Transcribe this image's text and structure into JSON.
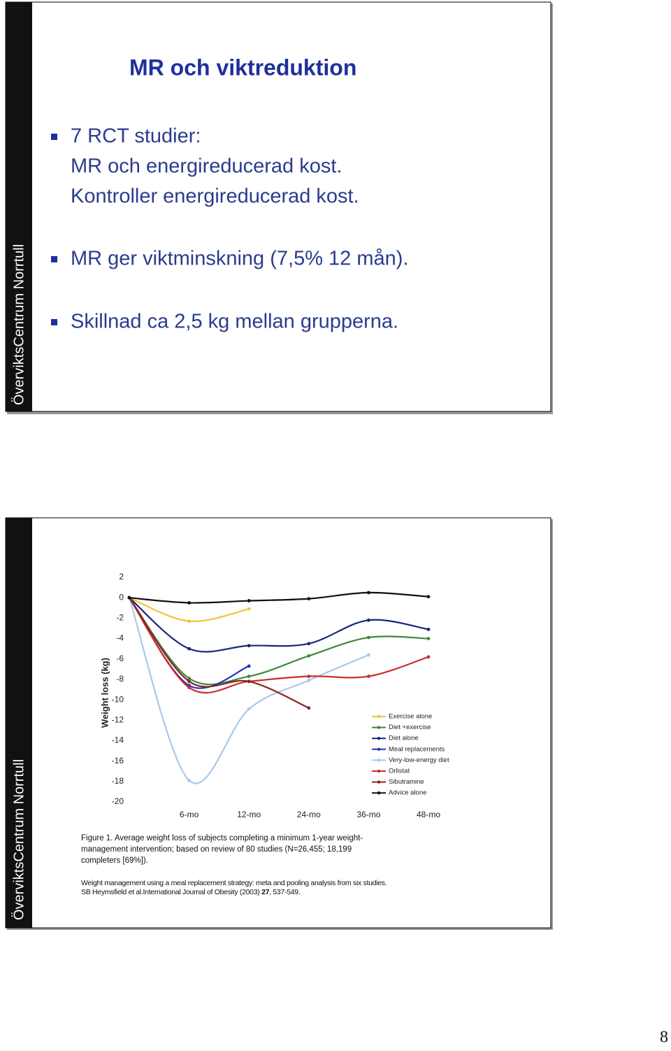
{
  "slides": [
    {
      "side_label": "ÖverviktsCentrum Norrtull",
      "title": "MR och viktreduktion",
      "bullets": [
        {
          "lines": [
            "7 RCT studier:",
            "MR och energireducerad kost.",
            "Kontroller energireducerad kost."
          ]
        },
        {
          "lines": [
            "MR ger viktminskning (7,5% 12 mån)."
          ]
        },
        {
          "lines": [
            "Skillnad ca 2,5 kg mellan grupperna."
          ]
        }
      ]
    },
    {
      "side_label": "ÖverviktsCentrum Norrtull",
      "caption_lines": [
        "Figure 1. Average weight loss of subjects completing a minimum 1-year weight-",
        "management intervention; based on review of 80 studies (N=26,455; 18,199",
        "completers [69%])."
      ],
      "source_line": "Weight management using a meal replacement strategy: meta and pooling analysis from six studies.",
      "citation": [
        "SB Heymsfield et al.International Journal of Obesity (2003) ",
        "27",
        ", 537-549."
      ]
    }
  ],
  "page_number": "8",
  "chart_data": {
    "type": "line",
    "y_label": "Weight loss (kg)",
    "categories": [
      null,
      "6-mo",
      "12-mo",
      "24-mo",
      "36-mo",
      "48-mo"
    ],
    "ylim": [
      -20,
      2
    ],
    "yticks": [
      2,
      0,
      -2,
      -4,
      -6,
      -8,
      -10,
      -12,
      -14,
      -16,
      -18,
      -20
    ],
    "series": [
      {
        "name": "Exercise alone",
        "color": "#efc43a",
        "values": [
          0,
          -2.3,
          -1.1,
          null,
          null,
          null
        ]
      },
      {
        "name": "Diet +exercise",
        "color": "#3f8a3a",
        "values": [
          0,
          -7.9,
          -7.7,
          -5.7,
          -3.9,
          -4.0
        ]
      },
      {
        "name": "Diet alone",
        "color": "#1a2680",
        "values": [
          0,
          -5.0,
          -4.7,
          -4.5,
          -2.2,
          -3.1
        ]
      },
      {
        "name": "Meal replacements",
        "color": "#2233c4",
        "values": [
          0,
          -8.6,
          -6.7,
          null,
          null,
          null
        ]
      },
      {
        "name": "Very-low-energy diet",
        "color": "#a9c8ee",
        "values": [
          0,
          -17.9,
          -10.9,
          -8.1,
          -5.6,
          null
        ]
      },
      {
        "name": "Orlistat",
        "color": "#c8302c",
        "values": [
          0,
          -8.8,
          -8.2,
          -7.7,
          -7.7,
          -5.8
        ]
      },
      {
        "name": "Sibutramine",
        "color": "#8a2424",
        "values": [
          0,
          -8.2,
          -8.2,
          -10.8,
          null,
          null
        ]
      },
      {
        "name": "Advice alone",
        "color": "#111111",
        "values": [
          0,
          -0.5,
          -0.3,
          -0.1,
          0.5,
          0.1
        ]
      }
    ]
  }
}
